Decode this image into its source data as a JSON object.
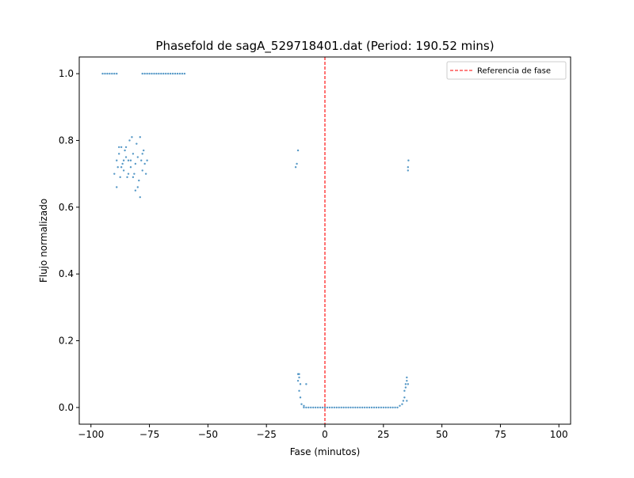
{
  "chart_data": {
    "type": "scatter",
    "title": "Phasefold de sagA_529718401.dat (Period: 190.52 mins)",
    "xlabel": "Fase (minutos)",
    "ylabel": "Flujo normalizado",
    "xlim": [
      -105,
      105
    ],
    "ylim": [
      -0.05,
      1.05
    ],
    "xticks": [
      -100,
      -75,
      -50,
      -25,
      0,
      25,
      50,
      75,
      100
    ],
    "yticks": [
      0.0,
      0.2,
      0.4,
      0.6,
      0.8,
      1.0
    ],
    "xtick_labels": [
      "−100",
      "−75",
      "−50",
      "−25",
      "0",
      "25",
      "50",
      "75",
      "100"
    ],
    "ytick_labels": [
      "0.0",
      "0.2",
      "0.4",
      "0.6",
      "0.8",
      "1.0"
    ],
    "grid": false,
    "legend_position": "top-right",
    "colors": {
      "points": "#1f77b4",
      "reference": "#ff0000"
    },
    "reference_line": {
      "x": 0,
      "label": "Referencia de fase",
      "style": "dashed"
    },
    "series": [
      {
        "values": [
          [
            -95.0,
            1.0
          ],
          [
            -94.0,
            1.0
          ],
          [
            -93.0,
            1.0
          ],
          [
            -92.0,
            1.0
          ],
          [
            -91.0,
            1.0
          ],
          [
            -90.0,
            1.0
          ],
          [
            -89.0,
            1.0
          ],
          [
            -78.0,
            1.0
          ],
          [
            -77.0,
            1.0
          ],
          [
            -76.0,
            1.0
          ],
          [
            -75.0,
            1.0
          ],
          [
            -74.0,
            1.0
          ],
          [
            -73.0,
            1.0
          ],
          [
            -72.0,
            1.0
          ],
          [
            -71.0,
            1.0
          ],
          [
            -70.0,
            1.0
          ],
          [
            -69.0,
            1.0
          ],
          [
            -68.0,
            1.0
          ],
          [
            -67.0,
            1.0
          ],
          [
            -66.0,
            1.0
          ],
          [
            -65.0,
            1.0
          ],
          [
            -64.0,
            1.0
          ],
          [
            -63.0,
            1.0
          ],
          [
            -62.0,
            1.0
          ],
          [
            -61.0,
            1.0
          ],
          [
            -60.0,
            1.0
          ],
          [
            -90.0,
            0.7
          ],
          [
            -89.0,
            0.74
          ],
          [
            -89.0,
            0.66
          ],
          [
            -88.5,
            0.72
          ],
          [
            -88.0,
            0.76
          ],
          [
            -87.5,
            0.69
          ],
          [
            -87.0,
            0.78
          ],
          [
            -86.5,
            0.73
          ],
          [
            -86.0,
            0.71
          ],
          [
            -85.5,
            0.77
          ],
          [
            -85.0,
            0.75
          ],
          [
            -84.5,
            0.69
          ],
          [
            -84.0,
            0.74
          ],
          [
            -83.5,
            0.8
          ],
          [
            -83.0,
            0.72
          ],
          [
            -82.5,
            0.81
          ],
          [
            -82.0,
            0.76
          ],
          [
            -81.5,
            0.7
          ],
          [
            -81.0,
            0.73
          ],
          [
            -80.5,
            0.79
          ],
          [
            -80.0,
            0.75
          ],
          [
            -79.5,
            0.68
          ],
          [
            -79.0,
            0.81
          ],
          [
            -78.5,
            0.74
          ],
          [
            -78.0,
            0.71
          ],
          [
            -77.5,
            0.77
          ],
          [
            -77.0,
            0.73
          ],
          [
            -76.5,
            0.7
          ],
          [
            -76.0,
            0.74
          ],
          [
            -81.0,
            0.65
          ],
          [
            -79.0,
            0.63
          ],
          [
            -84.0,
            0.7
          ],
          [
            -86.0,
            0.74
          ],
          [
            -88.0,
            0.78
          ],
          [
            -80.0,
            0.66
          ],
          [
            -82.0,
            0.69
          ],
          [
            -85.0,
            0.78
          ],
          [
            -83.0,
            0.74
          ],
          [
            -78.0,
            0.76
          ],
          [
            -87.0,
            0.72
          ],
          [
            -12.5,
            0.72
          ],
          [
            -12.0,
            0.73
          ],
          [
            -11.5,
            0.77
          ],
          [
            -11.5,
            0.1
          ],
          [
            -11.0,
            0.09
          ],
          [
            -11.0,
            0.1
          ],
          [
            -10.5,
            0.07
          ],
          [
            -11.0,
            0.05
          ],
          [
            -10.5,
            0.03
          ],
          [
            -8.0,
            0.07
          ],
          [
            -11.5,
            0.08
          ],
          [
            -10.0,
            0.01
          ],
          [
            -9.0,
            0.005
          ],
          [
            -9.0,
            0.0
          ],
          [
            -8.0,
            0.0
          ],
          [
            -7.0,
            0.0
          ],
          [
            -6.0,
            0.0
          ],
          [
            -5.0,
            0.0
          ],
          [
            -4.0,
            0.0
          ],
          [
            -3.0,
            0.0
          ],
          [
            -2.0,
            0.0
          ],
          [
            -1.0,
            0.0
          ],
          [
            0.0,
            0.0
          ],
          [
            1.0,
            0.0
          ],
          [
            2.0,
            0.0
          ],
          [
            3.0,
            0.0
          ],
          [
            4.0,
            0.0
          ],
          [
            5.0,
            0.0
          ],
          [
            6.0,
            0.0
          ],
          [
            7.0,
            0.0
          ],
          [
            8.0,
            0.0
          ],
          [
            9.0,
            0.0
          ],
          [
            10.0,
            0.0
          ],
          [
            11.0,
            0.0
          ],
          [
            12.0,
            0.0
          ],
          [
            13.0,
            0.0
          ],
          [
            14.0,
            0.0
          ],
          [
            15.0,
            0.0
          ],
          [
            16.0,
            0.0
          ],
          [
            17.0,
            0.0
          ],
          [
            18.0,
            0.0
          ],
          [
            19.0,
            0.0
          ],
          [
            20.0,
            0.0
          ],
          [
            21.0,
            0.0
          ],
          [
            22.0,
            0.0
          ],
          [
            23.0,
            0.0
          ],
          [
            24.0,
            0.0
          ],
          [
            25.0,
            0.0
          ],
          [
            26.0,
            0.0
          ],
          [
            27.0,
            0.0
          ],
          [
            28.0,
            0.0
          ],
          [
            29.0,
            0.0
          ],
          [
            30.0,
            0.0
          ],
          [
            31.0,
            0.0
          ],
          [
            32.0,
            0.005
          ],
          [
            33.0,
            0.01
          ],
          [
            33.5,
            0.02
          ],
          [
            34.0,
            0.03
          ],
          [
            34.0,
            0.05
          ],
          [
            34.5,
            0.06
          ],
          [
            34.5,
            0.07
          ],
          [
            35.0,
            0.08
          ],
          [
            35.0,
            0.09
          ],
          [
            35.0,
            0.02
          ],
          [
            35.5,
            0.07
          ],
          [
            35.5,
            0.71
          ],
          [
            35.5,
            0.72
          ],
          [
            35.7,
            0.74
          ]
        ]
      }
    ]
  }
}
